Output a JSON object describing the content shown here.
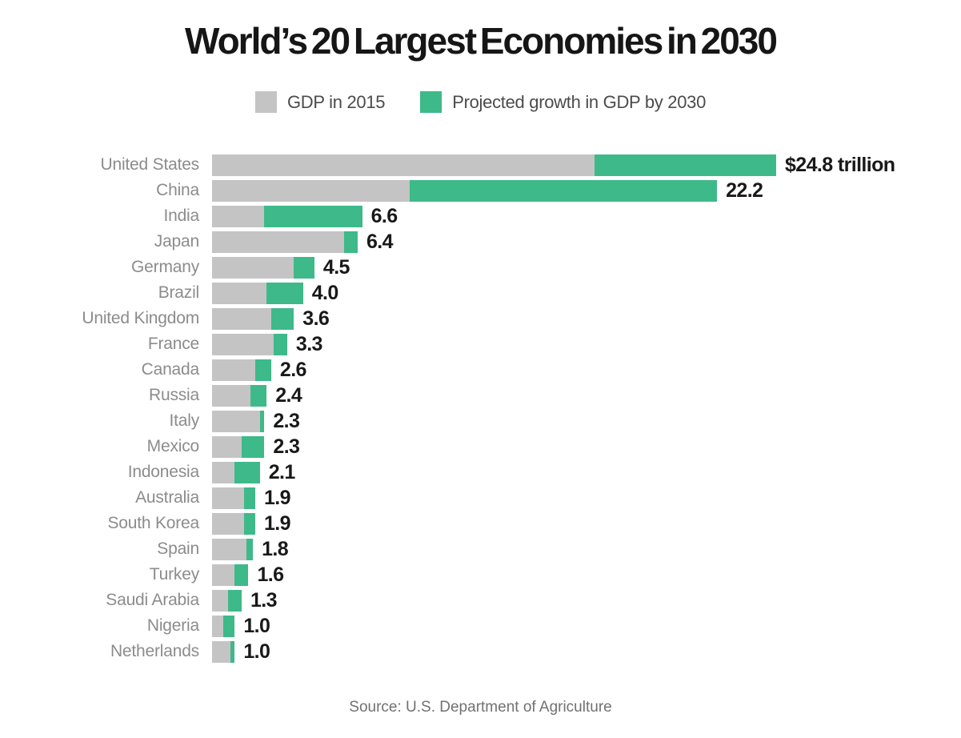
{
  "title": "World’s 20 Largest Economies in 2030",
  "legend": [
    {
      "label": "GDP in 2015",
      "color": "#c4c4c4"
    },
    {
      "label": "Projected growth in GDP by 2030",
      "color": "#3eb98a"
    }
  ],
  "source": "Source: U.S. Department of Agriculture",
  "colors": {
    "gdp_2015_bar": "#c4c4c4",
    "growth_bar": "#3eb98a",
    "country_label": "#8c8c8c",
    "value_label": "#191919",
    "title": "#161616",
    "source": "#717171"
  },
  "chart_data": {
    "type": "bar",
    "orientation": "horizontal",
    "stacked": true,
    "unit": "trillions of USD",
    "title": "World’s 20 Largest Economies in 2030",
    "xlabel": "",
    "ylabel": "",
    "xlim": [
      0,
      24.8
    ],
    "grid": false,
    "legend_position": "top-center",
    "categories": [
      "United States",
      "China",
      "India",
      "Japan",
      "Germany",
      "Brazil",
      "United Kingdom",
      "France",
      "Canada",
      "Russia",
      "Italy",
      "Mexico",
      "Indonesia",
      "Australia",
      "South Korea",
      "Spain",
      "Turkey",
      "Saudi Arabia",
      "Nigeria",
      "Netherlands"
    ],
    "series": [
      {
        "name": "GDP in 2015",
        "color": "#c4c4c4",
        "values": [
          16.8,
          8.7,
          2.3,
          5.8,
          3.6,
          2.4,
          2.6,
          2.7,
          1.9,
          1.7,
          2.1,
          1.3,
          1.0,
          1.4,
          1.4,
          1.5,
          1.0,
          0.7,
          0.5,
          0.8
        ]
      },
      {
        "name": "Projected growth in GDP by 2030",
        "color": "#3eb98a",
        "values": [
          8.0,
          13.5,
          4.3,
          0.6,
          0.9,
          1.6,
          1.0,
          0.6,
          0.7,
          0.7,
          0.2,
          1.0,
          1.1,
          0.5,
          0.5,
          0.3,
          0.6,
          0.6,
          0.5,
          0.2
        ]
      }
    ],
    "totals": [
      24.8,
      22.2,
      6.6,
      6.4,
      4.5,
      4.0,
      3.6,
      3.3,
      2.6,
      2.4,
      2.3,
      2.3,
      2.1,
      1.9,
      1.9,
      1.8,
      1.6,
      1.3,
      1.0,
      1.0
    ],
    "total_labels": [
      "$24.8 trillion",
      "22.2",
      "6.6",
      "6.4",
      "4.5",
      "4.0",
      "3.6",
      "3.3",
      "2.6",
      "2.4",
      "2.3",
      "2.3",
      "2.1",
      "1.9",
      "1.9",
      "1.8",
      "1.6",
      "1.3",
      "1.0",
      "1.0"
    ]
  }
}
